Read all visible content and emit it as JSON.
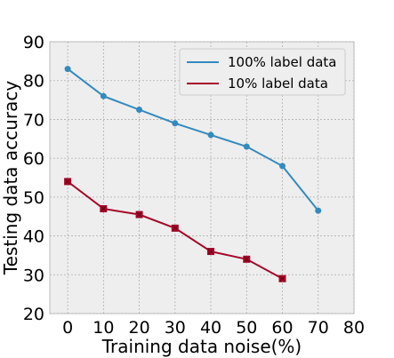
{
  "chart_data": {
    "type": "line",
    "xlabel": "Training data noise(%)",
    "ylabel": "Testing data accuracy",
    "xlim": [
      -5,
      80
    ],
    "ylim": [
      20,
      90
    ],
    "x_ticks": [
      0,
      10,
      20,
      30,
      40,
      50,
      60,
      70,
      80
    ],
    "y_ticks": [
      20,
      30,
      40,
      50,
      60,
      70,
      80,
      90
    ],
    "grid": true,
    "legend_position": "top-right",
    "series": [
      {
        "name": "100% label data",
        "color": "#348ABD",
        "marker": "circle",
        "x": [
          0,
          10,
          20,
          30,
          40,
          50,
          60,
          70
        ],
        "y": [
          83,
          76,
          72.5,
          69,
          66,
          63,
          58,
          46.5
        ]
      },
      {
        "name": "10% label data",
        "color": "#A60628",
        "marker": "square-x",
        "x": [
          0,
          10,
          20,
          30,
          40,
          50,
          60
        ],
        "y": [
          54,
          47,
          45.5,
          42,
          36,
          34,
          29
        ]
      }
    ]
  }
}
